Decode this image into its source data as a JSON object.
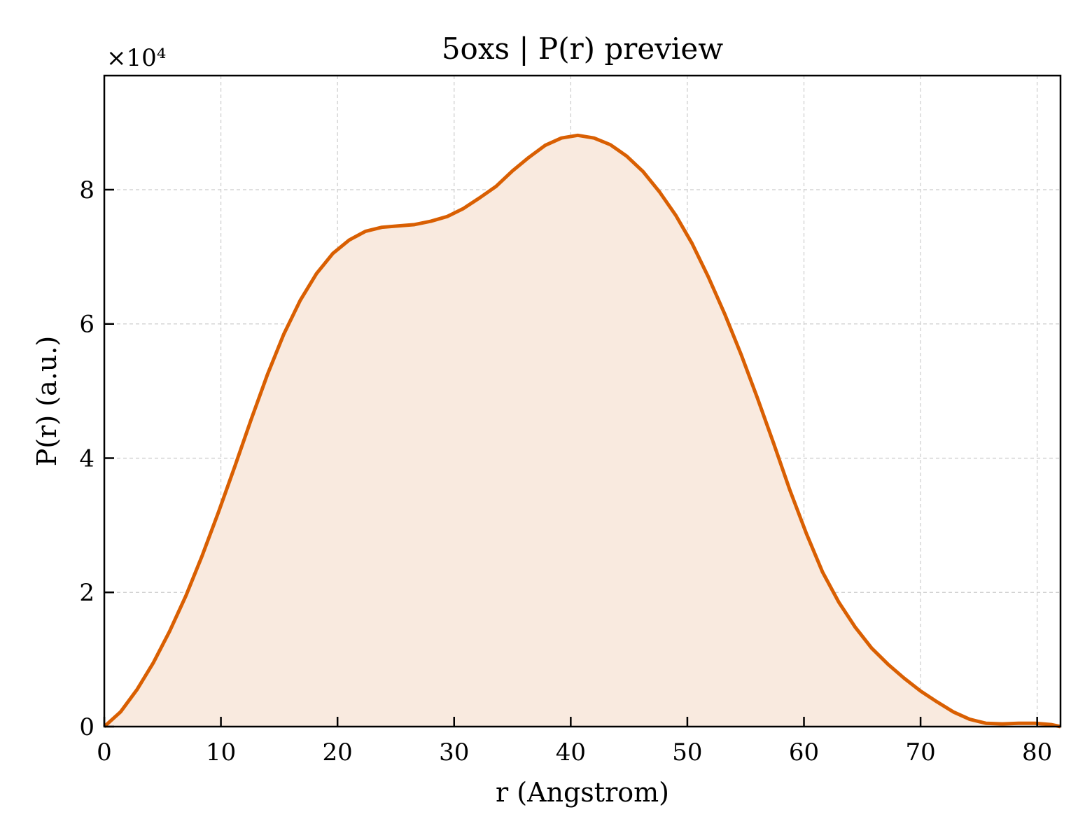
{
  "chart_data": {
    "type": "area",
    "title": "5oxs | P(r) preview",
    "xlabel": "r (Angstrom)",
    "ylabel": "P(r) (a.u.)",
    "y_offset_label": "×10⁴",
    "xlim": [
      0,
      82
    ],
    "ylim": [
      0,
      9.7
    ],
    "xticks": [
      0,
      10,
      20,
      30,
      40,
      50,
      60,
      70,
      80
    ],
    "yticks": [
      0,
      2,
      4,
      6,
      8
    ],
    "grid": true,
    "line_color": "#d95f02",
    "fill_color": "#f9eadf",
    "series": [
      {
        "x": [
          0,
          1.4,
          2.8,
          4.2,
          5.6,
          7.0,
          8.4,
          9.8,
          11.2,
          12.6,
          14.0,
          15.4,
          16.8,
          18.2,
          19.6,
          21.0,
          22.4,
          23.8,
          25.2,
          26.6,
          28.0,
          29.4,
          30.8,
          32.2,
          33.6,
          35.0,
          36.4,
          37.8,
          39.2,
          40.6,
          42.0,
          43.4,
          44.8,
          46.2,
          47.6,
          49.0,
          50.4,
          51.8,
          53.2,
          54.6,
          56.0,
          57.4,
          58.8,
          60.2,
          61.6,
          63.0,
          64.4,
          65.8,
          67.2,
          68.6,
          70.0,
          71.4,
          72.8,
          74.2,
          75.6,
          77.0,
          78.4,
          79.8,
          81.2,
          82.0
        ],
        "y": [
          0.0,
          0.22,
          0.55,
          0.95,
          1.42,
          1.95,
          2.55,
          3.2,
          3.88,
          4.58,
          5.25,
          5.85,
          6.35,
          6.75,
          7.05,
          7.25,
          7.38,
          7.44,
          7.46,
          7.48,
          7.53,
          7.6,
          7.72,
          7.88,
          8.05,
          8.28,
          8.48,
          8.66,
          8.77,
          8.81,
          8.77,
          8.67,
          8.5,
          8.27,
          7.97,
          7.62,
          7.2,
          6.7,
          6.15,
          5.55,
          4.9,
          4.22,
          3.52,
          2.88,
          2.3,
          1.85,
          1.48,
          1.17,
          0.93,
          0.72,
          0.53,
          0.37,
          0.22,
          0.11,
          0.05,
          0.04,
          0.05,
          0.05,
          0.03,
          0.0
        ]
      }
    ]
  }
}
